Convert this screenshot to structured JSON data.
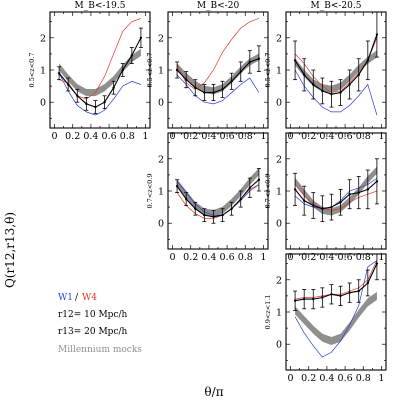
{
  "colors": {
    "w1": "#2a3fd6",
    "w4": "#e03a2a",
    "data": "#000000",
    "mocks": "#8f8f8f"
  },
  "figure": {
    "col_labels": [
      "M_B<-19.5",
      "M_B<-20",
      "M_B<-20.5"
    ],
    "row_labels": [
      "0.5<z<0.7",
      "0.7<z<0.9",
      "0.9<z<1.1"
    ],
    "ylabel": "Q(r12,r13,θ)",
    "xlabel": "θ/π",
    "legend": {
      "w1": "W1",
      "sep": "/",
      "w4": "W4",
      "r12": "r12= 10 Mpc/h",
      "r13": "r13= 20 Mpc/h",
      "mocks": "Millennium mocks"
    }
  },
  "chart_data": {
    "type": "line",
    "x_ticks": [
      0,
      0.2,
      0.4,
      0.6,
      0.8,
      1
    ],
    "x_tick_labels": [
      "0",
      "0.2",
      "0.4",
      "0.6",
      "0.8",
      "1"
    ],
    "x_range": [
      -0.05,
      1.05
    ],
    "y_range": [
      -0.8,
      2.8
    ],
    "y_ticks": [
      0,
      1,
      2
    ],
    "panels": [
      {
        "row": 0,
        "col": 0,
        "label": "M_B<-19.5 / 0.5<z<0.7",
        "x": [
          0.05,
          0.15,
          0.25,
          0.35,
          0.45,
          0.55,
          0.65,
          0.75,
          0.85,
          0.95
        ],
        "mean": [
          0.9,
          0.55,
          0.2,
          -0.05,
          -0.15,
          0.0,
          0.45,
          1.0,
          1.45,
          2.0
        ],
        "err": [
          0.2,
          0.2,
          0.2,
          0.2,
          0.2,
          0.2,
          0.2,
          0.2,
          0.25,
          0.3
        ],
        "w1": [
          0.9,
          0.35,
          -0.1,
          -0.3,
          -0.4,
          -0.25,
          0.1,
          0.5,
          0.65,
          0.55
        ],
        "w4": [
          0.7,
          0.6,
          0.2,
          0.1,
          0.3,
          0.8,
          1.5,
          2.2,
          2.5,
          2.6
        ],
        "mocks": [
          1.1,
          0.75,
          0.45,
          0.3,
          0.3,
          0.45,
          0.7,
          1.05,
          1.35,
          1.55
        ],
        "mocks_width": 0.22
      },
      {
        "row": 0,
        "col": 1,
        "label": "M_B<-20 / 0.5<z<0.7",
        "x": [
          0.05,
          0.15,
          0.25,
          0.35,
          0.45,
          0.55,
          0.65,
          0.75,
          0.85,
          0.95
        ],
        "mean": [
          1.0,
          0.7,
          0.45,
          0.3,
          0.3,
          0.4,
          0.65,
          0.95,
          1.25,
          1.35
        ],
        "err": [
          0.25,
          0.25,
          0.25,
          0.25,
          0.25,
          0.25,
          0.25,
          0.3,
          0.35,
          0.4
        ],
        "w1": [
          0.85,
          0.55,
          0.2,
          0.0,
          -0.05,
          0.05,
          0.3,
          0.55,
          0.75,
          0.3
        ],
        "w4": [
          1.15,
          0.6,
          0.4,
          0.6,
          1.0,
          1.55,
          1.95,
          2.3,
          2.5,
          2.6
        ],
        "mocks": [
          1.1,
          0.8,
          0.55,
          0.4,
          0.35,
          0.45,
          0.7,
          1.0,
          1.25,
          1.4
        ],
        "mocks_width": 0.22
      },
      {
        "row": 0,
        "col": 2,
        "label": "M_B<-20.5 / 0.5<z<0.7",
        "x": [
          0.05,
          0.15,
          0.25,
          0.35,
          0.45,
          0.55,
          0.65,
          0.75,
          0.85,
          0.95
        ],
        "mean": [
          1.3,
          0.85,
          0.55,
          0.35,
          0.25,
          0.3,
          0.55,
          0.85,
          1.3,
          2.1
        ],
        "err": [
          0.6,
          0.5,
          0.45,
          0.4,
          0.4,
          0.4,
          0.45,
          0.5,
          0.6,
          0.7
        ],
        "w1": [
          1.0,
          0.5,
          0.15,
          -0.15,
          -0.3,
          -0.3,
          -0.1,
          0.2,
          0.55,
          -0.4
        ],
        "w4": [
          1.5,
          1.2,
          0.8,
          0.5,
          0.3,
          0.35,
          0.6,
          0.9,
          1.3,
          2.0
        ],
        "mocks": [
          1.25,
          0.9,
          0.6,
          0.45,
          0.4,
          0.5,
          0.75,
          1.05,
          1.3,
          1.5
        ],
        "mocks_width": 0.22
      },
      {
        "row": 1,
        "col": 1,
        "label": "M_B<-20 / 0.7<z<0.9",
        "x": [
          0.05,
          0.15,
          0.25,
          0.35,
          0.45,
          0.55,
          0.65,
          0.75,
          0.85,
          0.95
        ],
        "mean": [
          1.15,
          0.75,
          0.45,
          0.25,
          0.2,
          0.25,
          0.45,
          0.75,
          1.1,
          1.35
        ],
        "err": [
          0.2,
          0.2,
          0.2,
          0.2,
          0.2,
          0.2,
          0.2,
          0.25,
          0.3,
          0.35
        ],
        "w1": [
          1.3,
          0.95,
          0.6,
          0.35,
          0.25,
          0.25,
          0.45,
          0.7,
          1.0,
          1.2
        ],
        "w4": [
          0.95,
          0.55,
          0.3,
          0.15,
          0.15,
          0.25,
          0.45,
          0.75,
          1.05,
          1.2
        ],
        "mocks": [
          1.25,
          0.9,
          0.55,
          0.35,
          0.3,
          0.4,
          0.65,
          0.95,
          1.3,
          1.6
        ],
        "mocks_width": 0.22
      },
      {
        "row": 1,
        "col": 2,
        "label": "M_B<-20.5 / 0.7<z<0.9",
        "x": [
          0.05,
          0.15,
          0.25,
          0.35,
          0.45,
          0.55,
          0.65,
          0.75,
          0.85,
          0.95
        ],
        "mean": [
          1.05,
          0.7,
          0.55,
          0.45,
          0.5,
          0.65,
          0.9,
          0.95,
          1.05,
          1.3
        ],
        "err": [
          0.5,
          0.45,
          0.4,
          0.4,
          0.4,
          0.4,
          0.45,
          0.5,
          0.6,
          0.7
        ],
        "w1": [
          0.85,
          0.6,
          0.5,
          0.45,
          0.5,
          0.7,
          1.0,
          1.1,
          1.2,
          1.4
        ],
        "w4": [
          1.2,
          0.85,
          0.6,
          0.45,
          0.4,
          0.45,
          0.65,
          0.8,
          0.9,
          1.0
        ],
        "mocks": [
          1.3,
          0.95,
          0.6,
          0.4,
          0.35,
          0.45,
          0.7,
          1.0,
          1.35,
          1.65
        ],
        "mocks_width": 0.22
      },
      {
        "row": 2,
        "col": 2,
        "label": "M_B<-20.5 / 0.9<z<1.1",
        "x": [
          0.05,
          0.15,
          0.25,
          0.35,
          0.45,
          0.55,
          0.65,
          0.75,
          0.85,
          0.95
        ],
        "mean": [
          1.35,
          1.4,
          1.4,
          1.45,
          1.55,
          1.5,
          1.6,
          1.65,
          1.9,
          2.5
        ],
        "err": [
          0.3,
          0.3,
          0.3,
          0.3,
          0.3,
          0.3,
          0.3,
          0.35,
          0.4,
          0.5
        ],
        "w1": [
          0.85,
          0.35,
          -0.05,
          -0.4,
          -0.25,
          0.1,
          0.6,
          1.2,
          2.4,
          2.6
        ],
        "w4": [
          1.4,
          1.45,
          1.45,
          1.5,
          1.55,
          1.55,
          1.65,
          1.75,
          2.0,
          2.6
        ],
        "mocks": [
          1.05,
          0.75,
          0.45,
          0.2,
          0.1,
          0.2,
          0.55,
          0.95,
          1.3,
          1.5
        ],
        "mocks_width": 0.25
      }
    ]
  }
}
